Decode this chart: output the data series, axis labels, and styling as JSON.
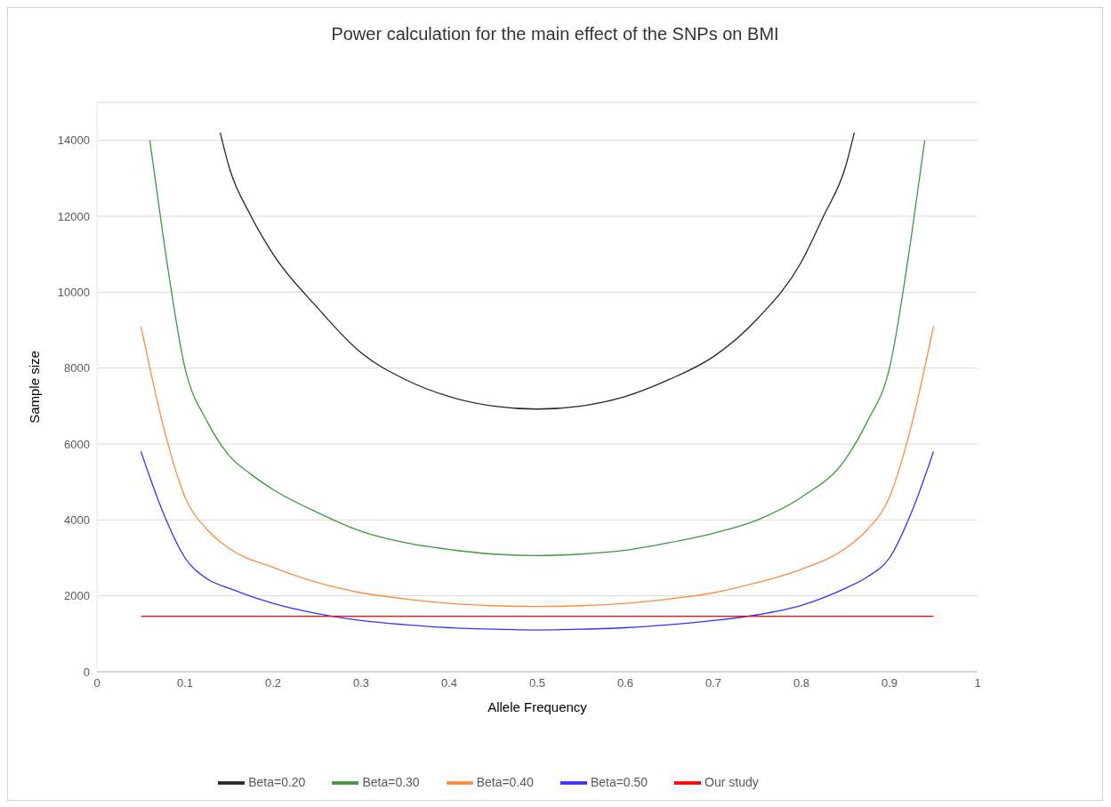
{
  "chart_data": {
    "type": "line",
    "title": "Power calculation for the main effect of the SNPs on BMI",
    "xlabel": "Allele Frequency",
    "ylabel": "Sample size",
    "xlim": [
      0,
      1
    ],
    "xticks": [
      0,
      0.1,
      0.2,
      0.3,
      0.4,
      0.5,
      0.6,
      0.7,
      0.8,
      0.9,
      1
    ],
    "ylim": [
      0,
      15000
    ],
    "yticks": [
      0,
      2000,
      4000,
      6000,
      8000,
      10000,
      12000,
      14000
    ],
    "grid": "y",
    "legend": "bottom",
    "marker": "none",
    "line_style": "solid",
    "series": [
      {
        "name": "Beta=0.20",
        "color": "#262626",
        "x": [
          0.14,
          0.15,
          0.175,
          0.2,
          0.25,
          0.3,
          0.35,
          0.4,
          0.45,
          0.5,
          0.55,
          0.6,
          0.65,
          0.7,
          0.75,
          0.8,
          0.825,
          0.85,
          0.86
        ],
        "values": [
          14200,
          13300,
          12000,
          11000,
          9600,
          8400,
          7700,
          7250,
          7000,
          6920,
          7000,
          7250,
          7700,
          8300,
          9300,
          10800,
          12000,
          13300,
          14200
        ]
      },
      {
        "name": "Beta=0.30",
        "color": "#3a9a3c",
        "x": [
          0.06,
          0.075,
          0.1,
          0.125,
          0.15,
          0.175,
          0.2,
          0.25,
          0.3,
          0.35,
          0.4,
          0.45,
          0.5,
          0.55,
          0.6,
          0.65,
          0.7,
          0.75,
          0.8,
          0.85,
          0.875,
          0.9,
          0.925,
          0.94
        ],
        "values": [
          14000,
          11500,
          8000,
          6600,
          5700,
          5200,
          4800,
          4200,
          3700,
          3400,
          3220,
          3100,
          3060,
          3100,
          3200,
          3400,
          3650,
          4000,
          4600,
          5600,
          6600,
          8000,
          11500,
          14000
        ]
      },
      {
        "name": "Beta=0.40",
        "color": "#ff8c3a",
        "x": [
          0.05,
          0.075,
          0.1,
          0.125,
          0.15,
          0.2,
          0.25,
          0.3,
          0.35,
          0.4,
          0.45,
          0.5,
          0.55,
          0.6,
          0.65,
          0.7,
          0.75,
          0.8,
          0.85,
          0.875,
          0.9,
          0.925,
          0.95
        ],
        "values": [
          9100,
          6500,
          4600,
          3750,
          3250,
          2750,
          2350,
          2080,
          1920,
          1800,
          1740,
          1720,
          1740,
          1800,
          1920,
          2080,
          2350,
          2700,
          3250,
          3750,
          4600,
          6500,
          9100
        ]
      },
      {
        "name": "Beta=0.50",
        "color": "#3333ff",
        "x": [
          0.05,
          0.075,
          0.1,
          0.125,
          0.15,
          0.2,
          0.25,
          0.3,
          0.35,
          0.4,
          0.45,
          0.5,
          0.55,
          0.6,
          0.65,
          0.7,
          0.75,
          0.8,
          0.85,
          0.875,
          0.9,
          0.925,
          0.95
        ],
        "values": [
          5800,
          4200,
          3000,
          2450,
          2200,
          1800,
          1530,
          1350,
          1240,
          1160,
          1120,
          1100,
          1120,
          1160,
          1240,
          1350,
          1500,
          1750,
          2200,
          2500,
          3000,
          4200,
          5800
        ]
      },
      {
        "name": "Our study",
        "color": "#ff0000",
        "x": [
          0.05,
          0.95
        ],
        "values": [
          1460,
          1460
        ]
      }
    ]
  }
}
